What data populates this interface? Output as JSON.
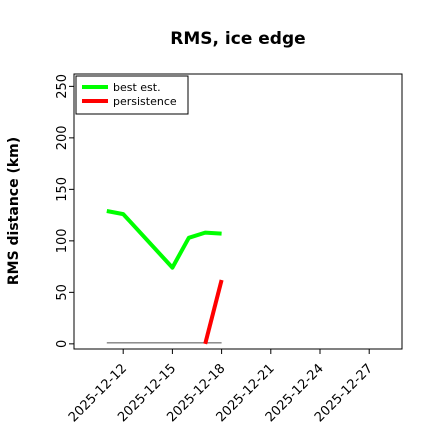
{
  "chart_data": {
    "type": "line",
    "title": "RMS, ice edge",
    "xlabel": "",
    "ylabel": "RMS distance (km)",
    "xlim": [
      "2025-12-09",
      "2025-12-29"
    ],
    "ylim": [
      -5,
      262
    ],
    "yticks": [
      0,
      50,
      100,
      150,
      200,
      250
    ],
    "xticks": [
      "2025-12-12",
      "2025-12-15",
      "2025-12-18",
      "2025-12-21",
      "2025-12-24",
      "2025-12-27"
    ],
    "grid": false,
    "legend_position": "top-left",
    "series": [
      {
        "name": "best est.",
        "color": "#00ff00",
        "x": [
          "2025-12-11",
          "2025-12-12",
          "2025-12-15",
          "2025-12-16",
          "2025-12-17",
          "2025-12-18"
        ],
        "values": [
          129,
          126,
          74,
          103,
          108,
          107
        ]
      },
      {
        "name": "persistence",
        "color": "#ff0000",
        "x": [
          "2025-12-17",
          "2025-12-18"
        ],
        "values": [
          0,
          62
        ]
      },
      {
        "name": "",
        "color": "#808080",
        "x": [
          "2025-12-11",
          "2025-12-18"
        ],
        "values": [
          1,
          1
        ]
      }
    ]
  }
}
